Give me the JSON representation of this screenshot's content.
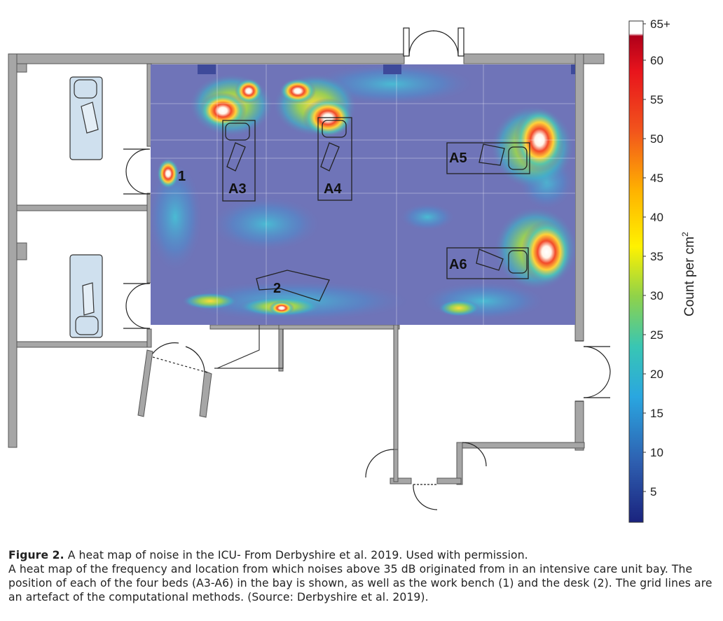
{
  "figure": {
    "bed_labels": [
      "A3",
      "A4",
      "A5",
      "A6"
    ],
    "marker_labels": [
      "1",
      "2"
    ],
    "colorbar": {
      "title": "Count per cm",
      "title_superscript": "2",
      "ticks": [
        "65+",
        "60",
        "55",
        "50",
        "45",
        "40",
        "35",
        "30",
        "25",
        "20",
        "15",
        "10",
        "5"
      ],
      "colors": [
        "#1a237e",
        "#2f6db5",
        "#29b6e6",
        "#39c9a8",
        "#a5d63a",
        "#fff200",
        "#ffb300",
        "#f25c1e",
        "#e8141c",
        "#b0001a"
      ]
    },
    "heatmap_base_color": "#6f74b8"
  },
  "caption": {
    "fig_label": "Figure 2.",
    "title": " A heat map of noise in the ICU- From Derbyshire et al. 2019. Used with permission.",
    "body": "A heat map of the frequency and location from which noises above 35 dB originated from in an intensive care unit bay. The position of each of the four beds (A3-A6) in the bay is shown, as well as the work bench (1) and the desk (2). The grid lines are an artefact of the computational methods. (Source: Derbyshire et al. 2019)."
  }
}
